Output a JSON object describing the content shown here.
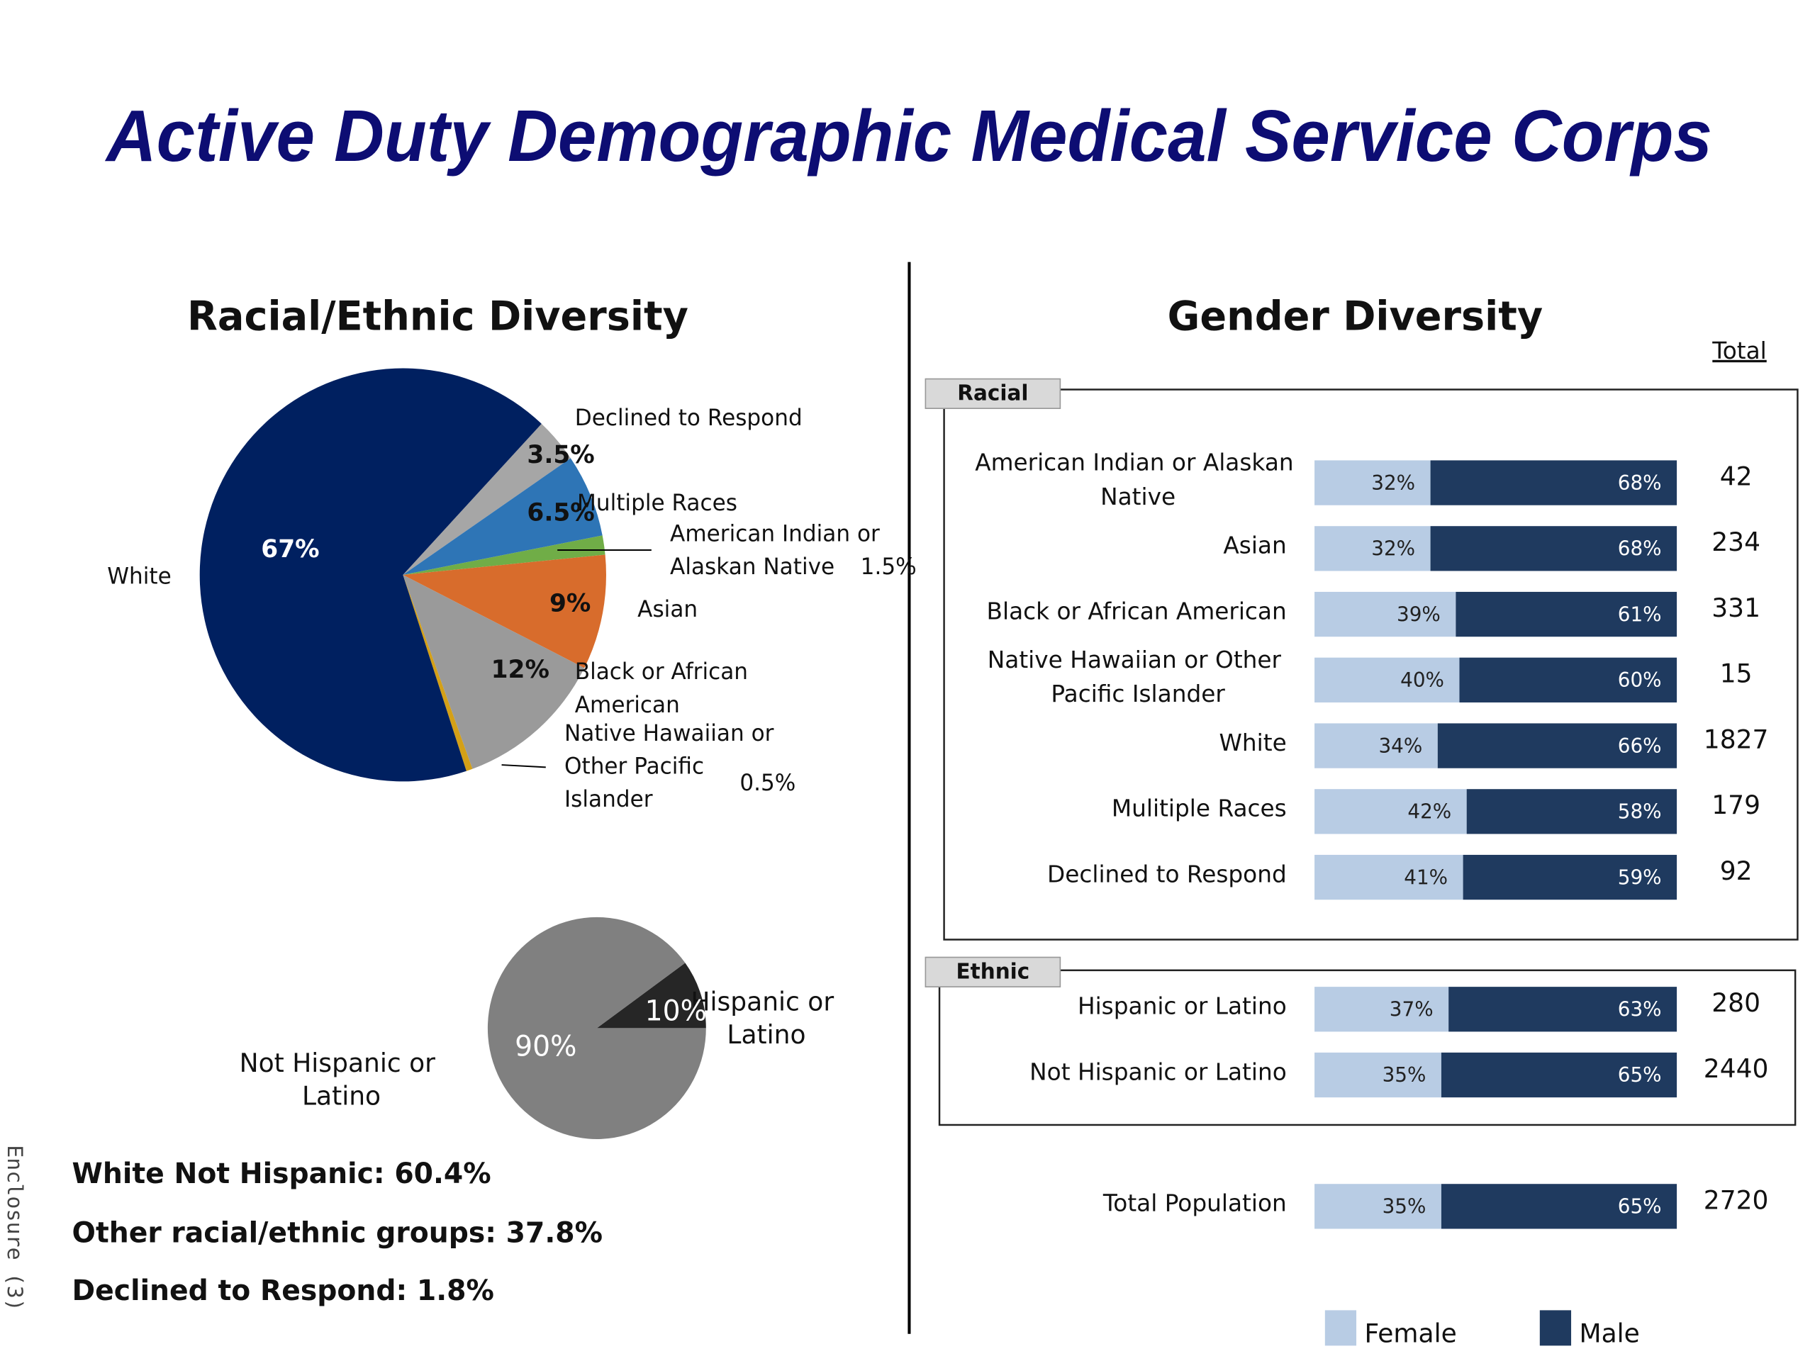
{
  "title": "Active Duty Demographic Medical Service Corps",
  "side_note": "Enclosure (3)",
  "notes": [
    "White Not Hispanic: 60.4%",
    "Other racial/ethnic groups: 37.8%",
    "Declined to Respond: 1.8%"
  ],
  "chart_data": [
    {
      "type": "pie",
      "title": "Racial/Ethnic Diversity",
      "categories": [
        "Declined to Respond",
        "Multiple Races",
        "American Indian or Alaskan Native",
        "Asian",
        "Black or African American",
        "Native Hawaiian or Other Pacific Islander",
        "White"
      ],
      "values": [
        3.5,
        6.5,
        1.5,
        9,
        12,
        0.5,
        67
      ],
      "value_labels": [
        "3.5%",
        "6.5%",
        "1.5%",
        "9%",
        "12%",
        "0.5%",
        "67%"
      ],
      "colors": [
        "#a6a6a6",
        "#2e75b6",
        "#70ad47",
        "#d86c2c",
        "#9a9a9a",
        "#d4a017",
        "#002060"
      ]
    },
    {
      "type": "pie",
      "categories": [
        "Hispanic or Latino",
        "Not Hispanic or Latino"
      ],
      "values": [
        10,
        90
      ],
      "value_labels": [
        "10%",
        "90%"
      ],
      "colors": [
        "#262626",
        "#808080"
      ]
    },
    {
      "type": "stacked-bar",
      "title": "Gender Diversity",
      "totals_label": "Total",
      "xlim": [
        0,
        100
      ],
      "series": [
        {
          "name": "Female",
          "color": "#b8cce4"
        },
        {
          "name": "Male",
          "color": "#1f3a5f"
        }
      ],
      "sections": [
        {
          "name": "Racial",
          "categories": [
            "American Indian or Alaskan Native",
            "Asian",
            "Black or African American",
            "Native Hawaiian or Other Pacific Islander",
            "White",
            "Mulitiple Races",
            "Declined to Respond"
          ],
          "series": [
            {
              "values": [
                32,
                32,
                39,
                40,
                34,
                42,
                41
              ],
              "value_labels": [
                "32%",
                "32%",
                "39%",
                "40%",
                "34%",
                "42%",
                "41%"
              ]
            },
            {
              "values": [
                68,
                68,
                61,
                60,
                66,
                58,
                59
              ],
              "value_labels": [
                "68%",
                "68%",
                "61%",
                "60%",
                "66%",
                "58%",
                "59%"
              ]
            }
          ],
          "totals": [
            42,
            234,
            331,
            15,
            1827,
            179,
            92
          ]
        },
        {
          "name": "Ethnic",
          "categories": [
            "Hispanic or Latino",
            "Not Hispanic or Latino"
          ],
          "series": [
            {
              "values": [
                37,
                35
              ],
              "value_labels": [
                "37%",
                "35%"
              ]
            },
            {
              "values": [
                63,
                65
              ],
              "value_labels": [
                "63%",
                "65%"
              ]
            }
          ],
          "totals": [
            280,
            2440
          ]
        },
        {
          "categories": [
            "Total Population"
          ],
          "series": [
            {
              "values": [
                35
              ],
              "value_labels": [
                "35%"
              ]
            },
            {
              "values": [
                65
              ],
              "value_labels": [
                "65%"
              ]
            }
          ],
          "totals": [
            2720
          ]
        }
      ]
    }
  ]
}
